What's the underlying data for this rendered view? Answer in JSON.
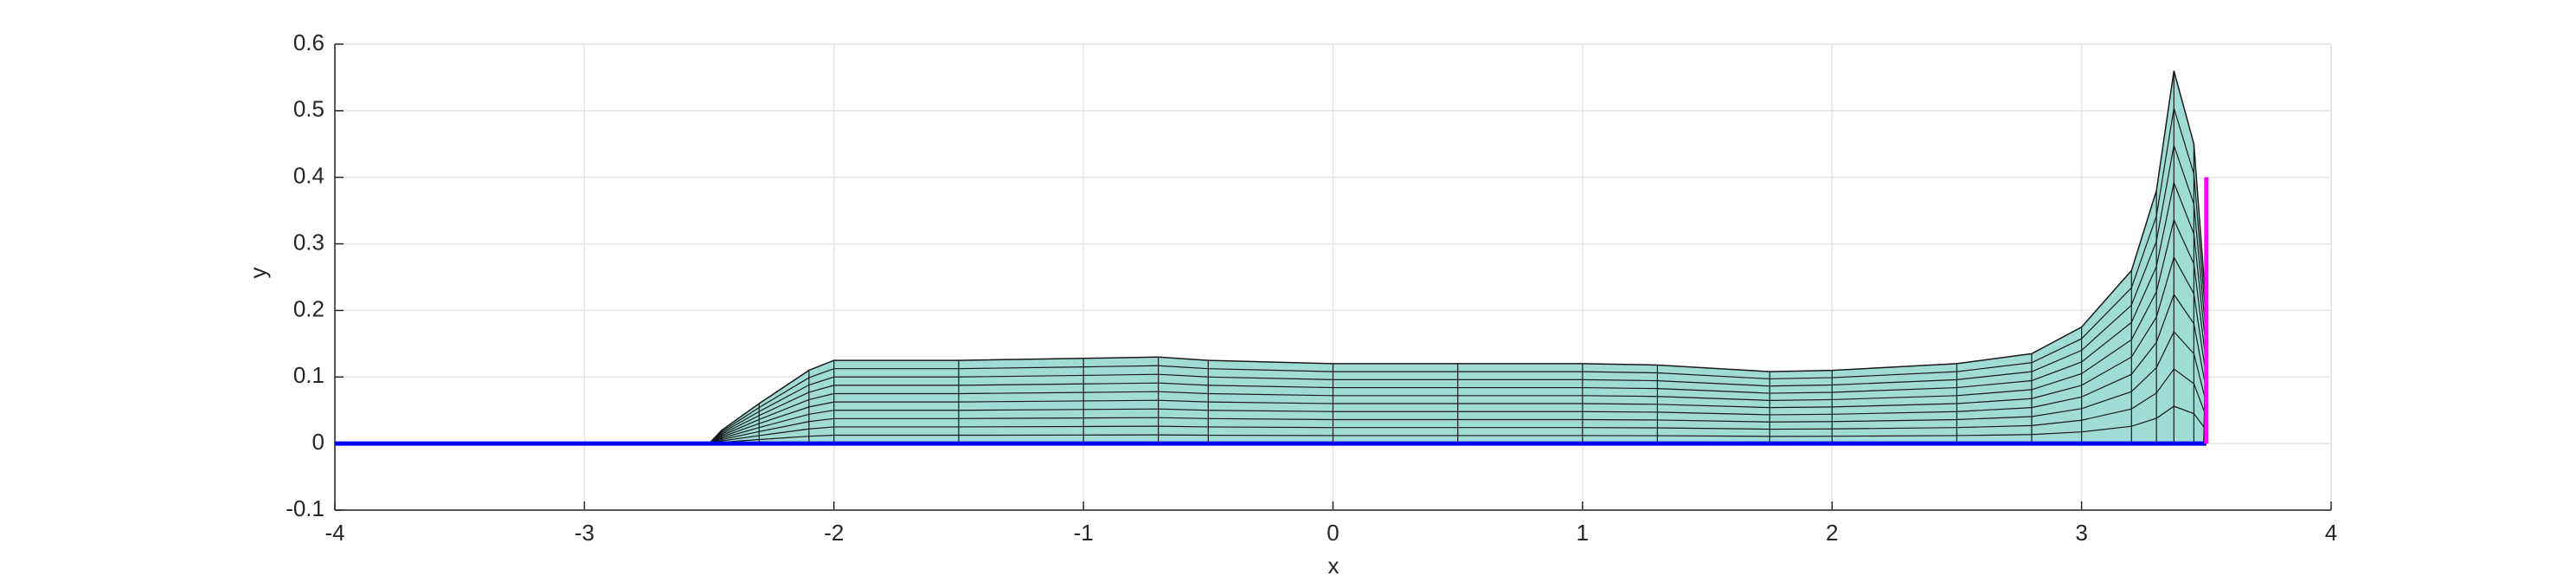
{
  "chart_data": {
    "type": "line",
    "xlabel": "x",
    "ylabel": "y",
    "xlim": [
      -4,
      4
    ],
    "ylim": [
      -0.1,
      0.6
    ],
    "xticks": [
      -4,
      -3,
      -2,
      -1,
      0,
      1,
      2,
      3,
      4
    ],
    "yticks": [
      -0.1,
      0,
      0.1,
      0.2,
      0.3,
      0.4,
      0.5,
      0.6
    ],
    "grid": true,
    "series": [
      {
        "type": "mesh",
        "color": "#9fdcd4",
        "x": [
          -2.5,
          -2.45,
          -2.3,
          -2.1,
          -2.0,
          -1.5,
          -1.0,
          -0.7,
          -0.5,
          0,
          0.5,
          1.0,
          1.3,
          1.75,
          2.0,
          2.5,
          2.8,
          3.0,
          3.2,
          3.3,
          3.37,
          3.45,
          3.5,
          3.49
        ],
        "values": [
          0,
          0.02,
          0.06,
          0.11,
          0.125,
          0.125,
          0.128,
          0.13,
          0.125,
          0.12,
          0.12,
          0.12,
          0.118,
          0.108,
          0.11,
          0.12,
          0.135,
          0.175,
          0.26,
          0.38,
          0.56,
          0.45,
          0.2,
          0
        ]
      },
      {
        "type": "line",
        "color": "#0000ff",
        "x": [
          -4,
          3.5
        ],
        "values": [
          0,
          0
        ]
      },
      {
        "type": "line",
        "color": "#ff00ff",
        "x": [
          3.5,
          3.5
        ],
        "values": [
          0,
          0.4
        ]
      }
    ]
  }
}
